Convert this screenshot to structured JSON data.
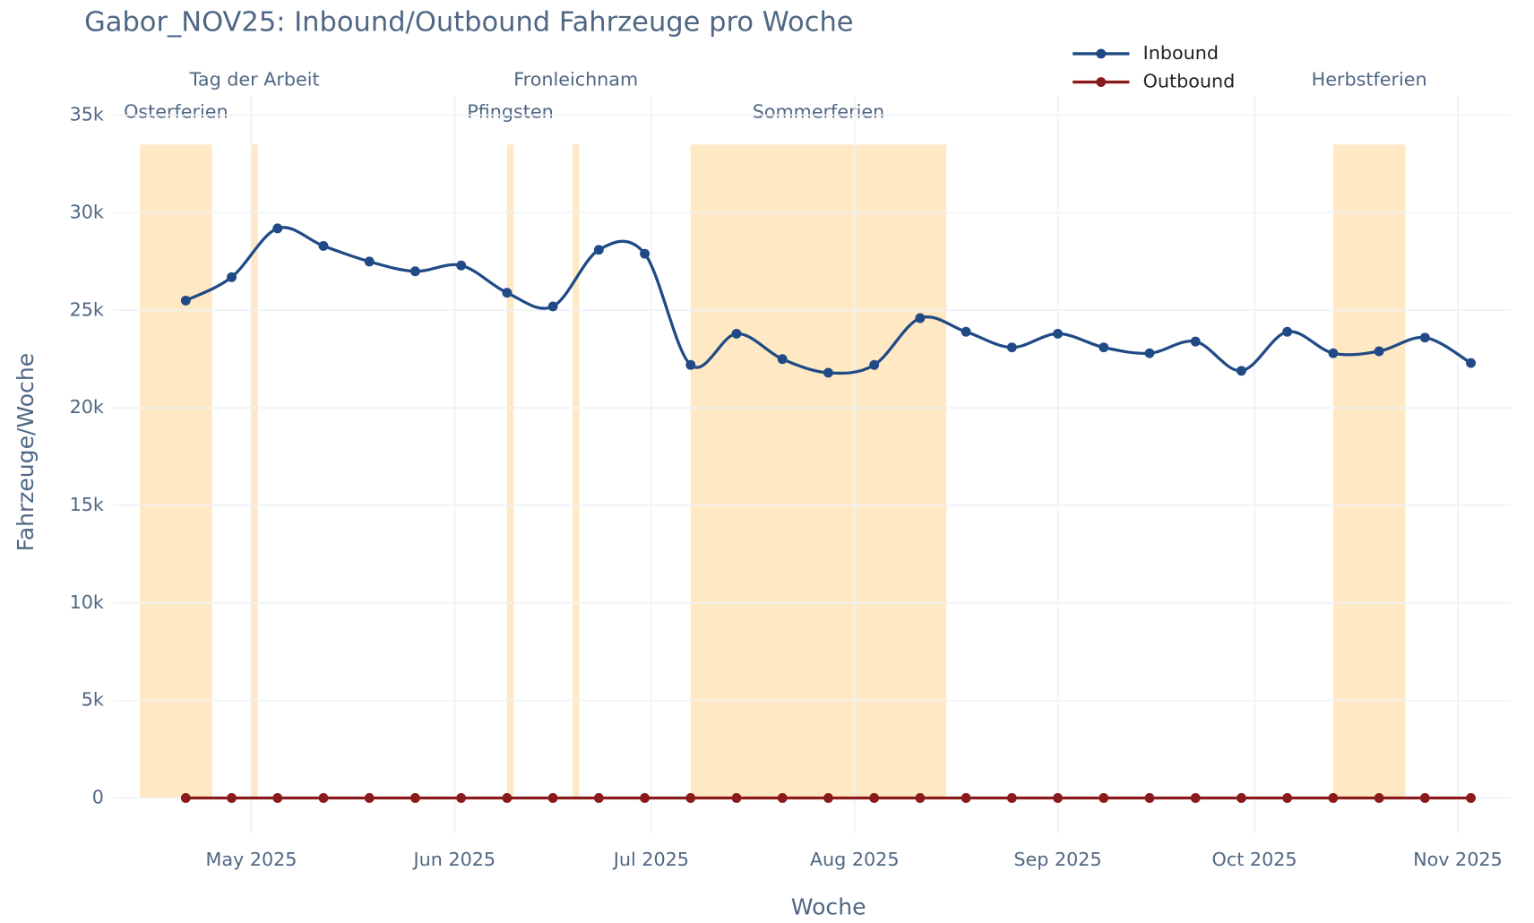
{
  "chart_data": {
    "type": "line",
    "title": "Gabor_NOV25: Inbound/Outbound Fahrzeuge pro Woche",
    "x_label": "Woche",
    "y_label": "Fahrzeuge/Woche",
    "x": [
      "2025-04-21",
      "2025-04-28",
      "2025-05-05",
      "2025-05-12",
      "2025-05-19",
      "2025-05-26",
      "2025-06-02",
      "2025-06-09",
      "2025-06-16",
      "2025-06-23",
      "2025-06-30",
      "2025-07-07",
      "2025-07-14",
      "2025-07-21",
      "2025-07-28",
      "2025-08-04",
      "2025-08-11",
      "2025-08-18",
      "2025-08-25",
      "2025-09-01",
      "2025-09-08",
      "2025-09-15",
      "2025-09-22",
      "2025-09-29",
      "2025-10-06",
      "2025-10-13",
      "2025-10-20",
      "2025-10-27",
      "2025-11-03"
    ],
    "series": [
      {
        "name": "Inbound",
        "color": "#1f4a85",
        "values": [
          25500,
          26700,
          29200,
          28300,
          27500,
          27000,
          27300,
          25900,
          25200,
          28100,
          27900,
          22200,
          23800,
          22500,
          21800,
          22200,
          24600,
          23900,
          23100,
          23800,
          23100,
          22800,
          23400,
          21900,
          23900,
          22800,
          22900,
          23600,
          22300
        ]
      },
      {
        "name": "Outbound",
        "color": "#8b1a1a",
        "values": [
          0,
          0,
          0,
          0,
          0,
          0,
          0,
          0,
          0,
          0,
          0,
          0,
          0,
          0,
          0,
          0,
          0,
          0,
          0,
          0,
          0,
          0,
          0,
          0,
          0,
          0,
          0,
          0,
          0
        ]
      }
    ],
    "xlim": [
      "2025-04-10",
      "2025-11-09"
    ],
    "xticks": [
      {
        "value": "2025-05-01",
        "label": "May 2025"
      },
      {
        "value": "2025-06-01",
        "label": "Jun 2025"
      },
      {
        "value": "2025-07-01",
        "label": "Jul 2025"
      },
      {
        "value": "2025-08-01",
        "label": "Aug 2025"
      },
      {
        "value": "2025-09-01",
        "label": "Sep 2025"
      },
      {
        "value": "2025-10-01",
        "label": "Oct 2025"
      },
      {
        "value": "2025-11-01",
        "label": "Nov 2025"
      }
    ],
    "ylim": [
      -1800,
      36000
    ],
    "yticks": [
      0,
      {
        "value": 5000,
        "label": "5k"
      },
      {
        "value": 10000,
        "label": "10k"
      },
      {
        "value": 15000,
        "label": "15k"
      },
      {
        "value": 20000,
        "label": "20k"
      },
      {
        "value": 25000,
        "label": "25k"
      },
      {
        "value": 30000,
        "label": "30k"
      },
      {
        "value": 35000,
        "label": "35k"
      }
    ],
    "grid": true,
    "legend": "top-right",
    "periods": [
      {
        "label": "Osterferien",
        "start": "2025-04-14",
        "end": "2025-04-25"
      },
      {
        "label": "Tag der Arbeit",
        "start": "2025-05-01",
        "end": "2025-05-02"
      },
      {
        "label": "Pfingsten",
        "start": "2025-06-09",
        "end": "2025-06-10"
      },
      {
        "label": "Fronleichnam",
        "start": "2025-06-19",
        "end": "2025-06-20"
      },
      {
        "label": "Sommerferien",
        "start": "2025-07-07",
        "end": "2025-08-15"
      },
      {
        "label": "Herbstferien",
        "start": "2025-10-13",
        "end": "2025-10-24"
      }
    ],
    "period_color": "#ffe8c4"
  }
}
